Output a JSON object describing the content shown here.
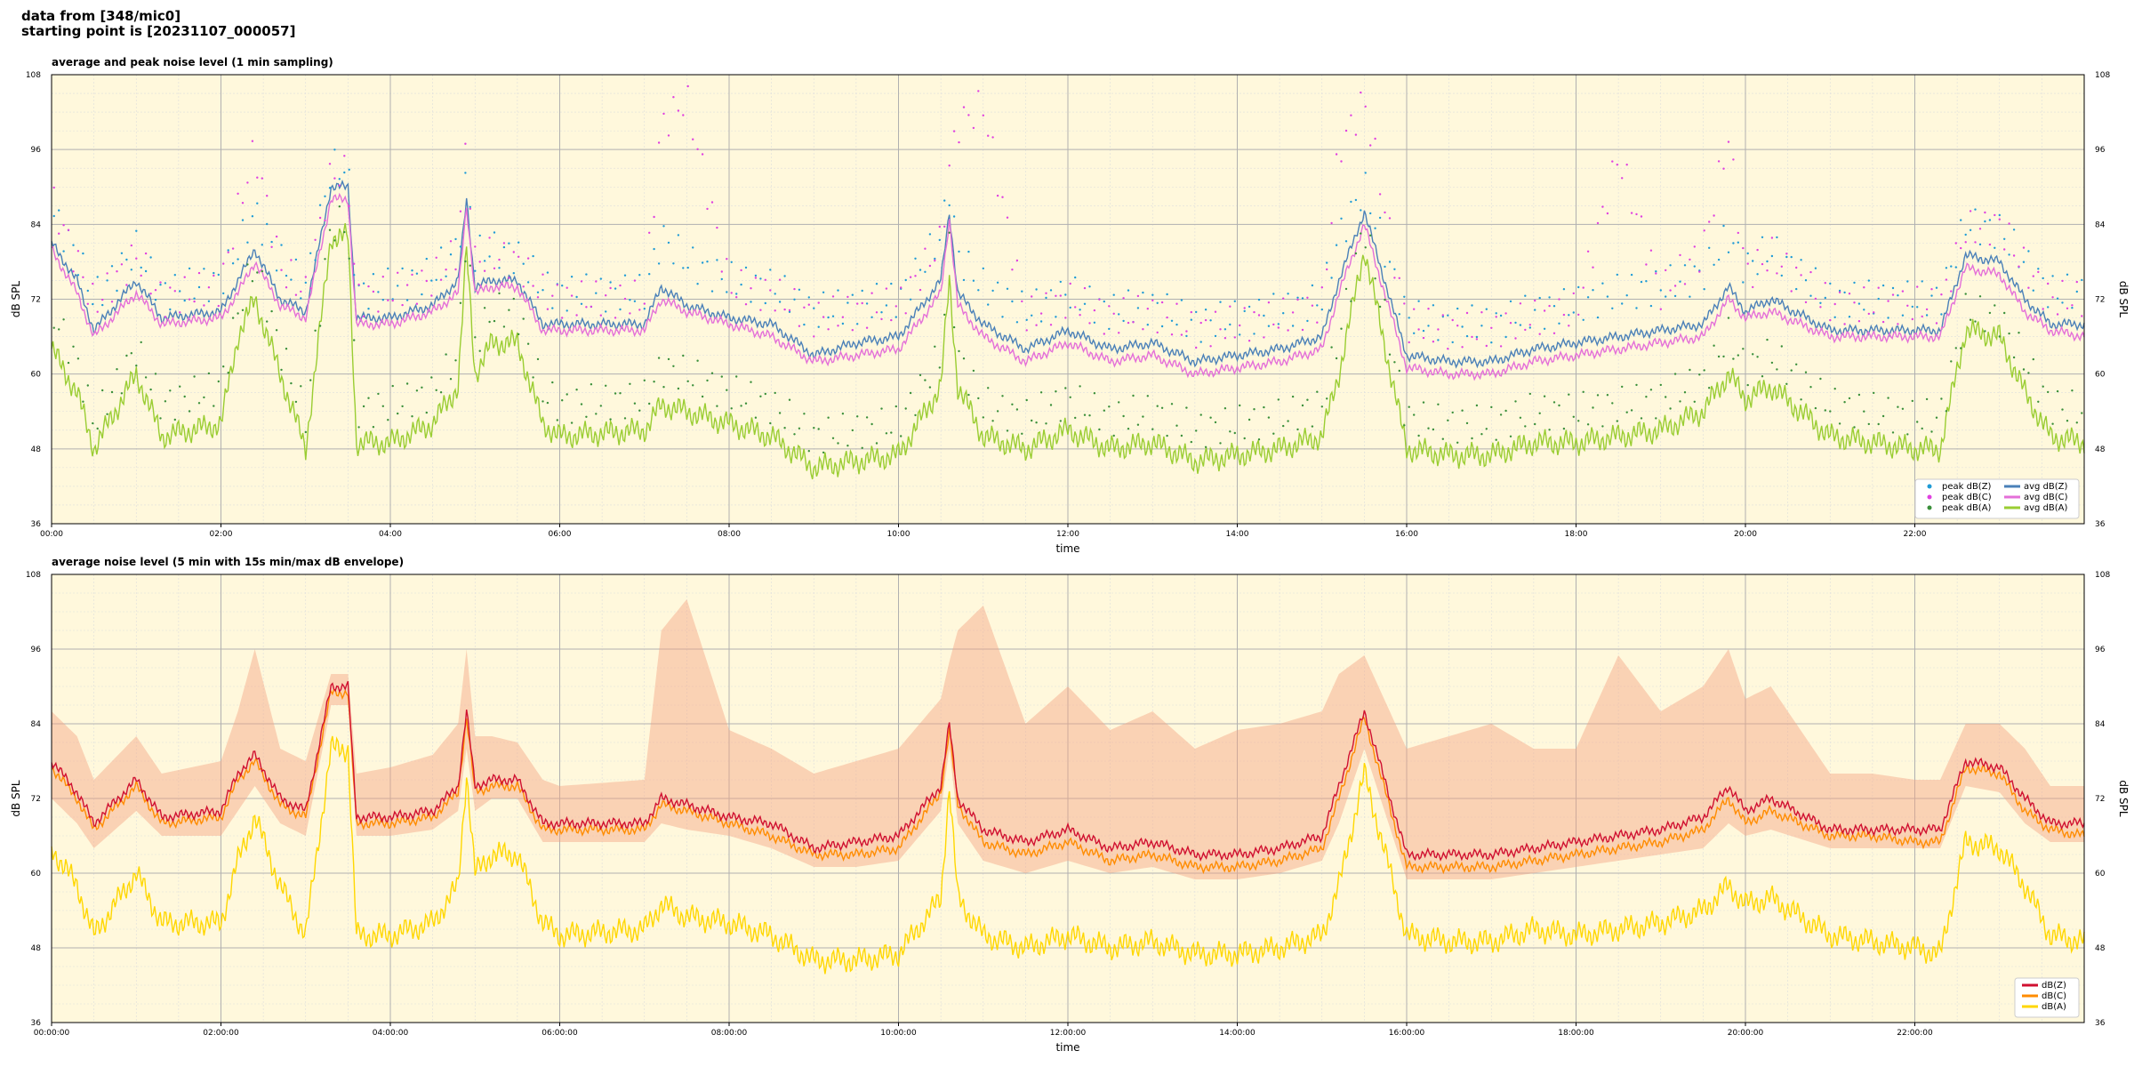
{
  "header": {
    "line1": "data from [348/mic0]",
    "line2": "starting point is [20231107_000057]"
  },
  "colors": {
    "plot_bg": "#fff8dc",
    "peak_z": "#1f9bd6",
    "peak_c": "#e040e0",
    "peak_a": "#3a8f3a",
    "avg_z": "#4a80b8",
    "avg_c": "#e46fd8",
    "avg_a": "#9acd32",
    "dbz": "#d01030",
    "dbc": "#ff8c00",
    "dba": "#ffd700",
    "envelope": "#f4a582"
  },
  "chart_data": [
    {
      "type": "line",
      "title": "average and peak noise level (1 min sampling)",
      "xlabel": "time",
      "ylabel": "dB SPL",
      "xlim": [
        0,
        24
      ],
      "ylim": [
        36,
        108
      ],
      "x_ticks": [
        "00:00",
        "02:00",
        "04:00",
        "06:00",
        "08:00",
        "10:00",
        "12:00",
        "14:00",
        "16:00",
        "18:00",
        "20:00",
        "22:00"
      ],
      "y_ticks": [
        "36",
        "48",
        "60",
        "72",
        "84",
        "96",
        "108"
      ],
      "grid": true,
      "legend": "bottom-right",
      "x_hours": [
        0,
        0.3,
        0.5,
        1,
        1.3,
        2,
        2.2,
        2.4,
        2.7,
        3,
        3.3,
        3.5,
        3.6,
        4,
        4.5,
        4.8,
        4.9,
        5,
        5.2,
        5.5,
        5.8,
        6,
        7,
        7.2,
        7.5,
        8,
        8.5,
        9,
        9.5,
        10,
        10.5,
        10.6,
        10.7,
        11,
        11.5,
        12,
        12.5,
        13,
        13.5,
        14,
        14.5,
        15,
        15.2,
        15.5,
        16,
        16.5,
        17,
        17.5,
        18,
        18.5,
        19,
        19.5,
        19.8,
        20,
        20.3,
        21,
        21.5,
        22,
        22.3,
        22.6,
        23,
        23.3,
        23.6,
        24
      ],
      "series": [
        {
          "name": "avg dB(Z)",
          "kind": "line",
          "values": [
            81,
            75,
            67,
            75,
            69,
            70,
            75,
            80,
            72,
            70,
            90,
            90,
            69,
            69,
            71,
            75,
            88,
            74,
            75,
            75,
            68,
            68,
            68,
            74,
            71,
            69,
            68,
            63,
            65,
            66,
            75,
            86,
            73,
            68,
            64,
            67,
            64,
            65,
            62,
            63,
            64,
            66,
            75,
            86,
            63,
            62,
            62,
            64,
            65,
            66,
            67,
            68,
            74,
            70,
            72,
            67,
            67,
            67,
            67,
            79,
            78,
            72,
            68,
            68
          ]
        },
        {
          "name": "avg dB(C)",
          "kind": "line",
          "values": [
            80,
            73,
            66,
            73,
            68,
            69,
            73,
            78,
            71,
            69,
            88,
            88,
            68,
            68,
            70,
            73,
            87,
            73,
            74,
            74,
            67,
            67,
            67,
            72,
            70,
            68,
            66,
            62,
            63,
            64,
            73,
            85,
            71,
            66,
            62,
            65,
            62,
            63,
            60,
            61,
            62,
            64,
            73,
            84,
            61,
            60,
            60,
            62,
            63,
            64,
            65,
            66,
            72,
            69,
            70,
            66,
            66,
            66,
            66,
            77,
            76,
            70,
            67,
            66
          ]
        },
        {
          "name": "avg dB(A)",
          "kind": "line",
          "values": [
            64,
            57,
            48,
            60,
            50,
            52,
            66,
            72,
            60,
            48,
            82,
            82,
            49,
            49,
            52,
            58,
            80,
            60,
            65,
            65,
            52,
            50,
            51,
            55,
            54,
            52,
            50,
            45,
            46,
            47,
            58,
            75,
            58,
            50,
            48,
            51,
            48,
            49,
            46,
            47,
            48,
            50,
            60,
            80,
            48,
            47,
            47,
            49,
            49,
            50,
            51,
            54,
            60,
            56,
            58,
            50,
            49,
            48,
            48,
            67,
            66,
            57,
            50,
            49
          ]
        },
        {
          "name": "peak dB(Z)",
          "kind": "scatter",
          "values": [
            86,
            79,
            72,
            80,
            73,
            75,
            80,
            86,
            78,
            74,
            93,
            93,
            73,
            74,
            76,
            80,
            92,
            79,
            80,
            79,
            74,
            73,
            73,
            82,
            78,
            75,
            74,
            70,
            71,
            72,
            82,
            90,
            79,
            74,
            70,
            73,
            70,
            71,
            68,
            69,
            70,
            72,
            82,
            90,
            69,
            68,
            68,
            70,
            71,
            73,
            74,
            76,
            82,
            77,
            80,
            72,
            72,
            72,
            72,
            84,
            83,
            78,
            73,
            73
          ]
        },
        {
          "name": "peak dB(C)",
          "kind": "scatter",
          "values": [
            88,
            78,
            71,
            79,
            72,
            74,
            86,
            96,
            77,
            73,
            92,
            92,
            72,
            73,
            75,
            80,
            98,
            78,
            79,
            78,
            73,
            72,
            72,
            100,
            104,
            74,
            73,
            69,
            70,
            71,
            81,
            93,
            100,
            103,
            69,
            72,
            69,
            70,
            67,
            68,
            69,
            71,
            96,
            104,
            68,
            67,
            67,
            69,
            70,
            95,
            73,
            80,
            98,
            76,
            79,
            71,
            71,
            71,
            71,
            83,
            84,
            77,
            72,
            72
          ]
        },
        {
          "name": "peak dB(A)",
          "kind": "scatter",
          "values": [
            70,
            62,
            52,
            64,
            55,
            58,
            70,
            78,
            64,
            53,
            84,
            84,
            54,
            55,
            57,
            63,
            84,
            65,
            70,
            70,
            57,
            55,
            56,
            61,
            60,
            57,
            55,
            50,
            51,
            52,
            63,
            80,
            63,
            55,
            53,
            56,
            53,
            54,
            51,
            52,
            53,
            55,
            66,
            84,
            53,
            52,
            52,
            54,
            54,
            55,
            56,
            59,
            66,
            61,
            63,
            55,
            54,
            53,
            53,
            70,
            69,
            62,
            55,
            54
          ]
        }
      ]
    },
    {
      "type": "line",
      "title": "average noise level (5 min with 15s min/max dB envelope)",
      "xlabel": "time",
      "ylabel": "dB SPL",
      "xlim": [
        0,
        24
      ],
      "ylim": [
        36,
        108
      ],
      "x_ticks": [
        "00:00:00",
        "02:00:00",
        "04:00:00",
        "06:00:00",
        "08:00:00",
        "10:00:00",
        "12:00:00",
        "14:00:00",
        "16:00:00",
        "18:00:00",
        "20:00:00",
        "22:00:00"
      ],
      "y_ticks": [
        "36",
        "48",
        "60",
        "72",
        "84",
        "96",
        "108"
      ],
      "grid": true,
      "legend": "bottom-right",
      "x_hours": [
        0,
        0.3,
        0.5,
        1,
        1.3,
        2,
        2.2,
        2.4,
        2.7,
        3,
        3.3,
        3.5,
        3.6,
        4,
        4.5,
        4.8,
        4.9,
        5,
        5.2,
        5.5,
        5.8,
        6,
        7,
        7.2,
        7.5,
        8,
        8.5,
        9,
        9.5,
        10,
        10.5,
        10.6,
        10.7,
        11,
        11.5,
        12,
        12.5,
        13,
        13.5,
        14,
        14.5,
        15,
        15.2,
        15.5,
        16,
        16.5,
        17,
        17.5,
        18,
        18.5,
        19,
        19.5,
        19.8,
        20,
        20.3,
        21,
        21.5,
        22,
        22.3,
        22.6,
        23,
        23.3,
        23.6,
        24
      ],
      "series": [
        {
          "name": "dB(Z)",
          "kind": "line",
          "values": [
            78,
            73,
            68,
            75,
            69,
            70,
            76,
            79,
            72,
            70,
            90,
            90,
            69,
            69,
            70,
            74,
            86,
            74,
            75,
            75,
            68,
            68,
            68,
            72,
            71,
            69,
            68,
            64,
            65,
            66,
            74,
            84,
            72,
            67,
            65,
            67,
            64,
            65,
            63,
            63,
            64,
            66,
            74,
            86,
            63,
            63,
            63,
            64,
            65,
            66,
            67,
            69,
            74,
            70,
            72,
            67,
            67,
            67,
            67,
            78,
            77,
            72,
            68,
            68
          ]
        },
        {
          "name": "dB(C)",
          "kind": "line",
          "values": [
            77,
            72,
            67,
            74,
            68,
            69,
            75,
            78,
            71,
            69,
            89,
            89,
            68,
            68,
            69,
            73,
            85,
            73,
            74,
            74,
            67,
            67,
            67,
            71,
            70,
            68,
            66,
            63,
            63,
            64,
            73,
            83,
            71,
            65,
            63,
            65,
            62,
            63,
            61,
            61,
            62,
            64,
            72,
            85,
            61,
            61,
            61,
            62,
            63,
            64,
            65,
            67,
            72,
            68,
            70,
            66,
            66,
            65,
            65,
            77,
            76,
            70,
            67,
            66
          ]
        },
        {
          "name": "dB(A)",
          "kind": "line",
          "values": [
            64,
            58,
            50,
            60,
            52,
            52,
            62,
            69,
            58,
            50,
            80,
            80,
            50,
            50,
            52,
            58,
            76,
            60,
            63,
            63,
            52,
            50,
            51,
            55,
            53,
            52,
            50,
            46,
            46,
            47,
            56,
            74,
            56,
            50,
            48,
            50,
            48,
            49,
            47,
            47,
            48,
            50,
            58,
            76,
            50,
            49,
            49,
            51,
            50,
            51,
            52,
            54,
            58,
            55,
            56,
            50,
            49,
            48,
            47,
            65,
            64,
            58,
            50,
            49
          ]
        },
        {
          "name": "envelope max",
          "kind": "band",
          "values": [
            86,
            82,
            75,
            82,
            76,
            78,
            86,
            96,
            80,
            78,
            92,
            92,
            76,
            77,
            79,
            84,
            96,
            82,
            82,
            81,
            75,
            74,
            75,
            99,
            104,
            83,
            80,
            76,
            78,
            80,
            88,
            94,
            99,
            103,
            84,
            90,
            83,
            86,
            80,
            83,
            84,
            86,
            92,
            95,
            80,
            82,
            84,
            80,
            80,
            95,
            86,
            90,
            96,
            88,
            90,
            76,
            76,
            75,
            75,
            84,
            84,
            80,
            74,
            74
          ]
        },
        {
          "name": "envelope min",
          "kind": "band",
          "values": [
            72,
            68,
            64,
            70,
            66,
            66,
            70,
            74,
            68,
            66,
            87,
            87,
            66,
            66,
            67,
            70,
            80,
            70,
            72,
            72,
            65,
            65,
            65,
            68,
            67,
            66,
            64,
            61,
            61,
            62,
            70,
            80,
            68,
            62,
            60,
            62,
            60,
            61,
            59,
            59,
            60,
            62,
            68,
            80,
            59,
            59,
            59,
            60,
            61,
            62,
            63,
            64,
            68,
            66,
            67,
            64,
            64,
            64,
            64,
            74,
            73,
            68,
            65,
            65
          ]
        }
      ]
    }
  ],
  "legend1": {
    "items": [
      {
        "label": "peak dB(Z)",
        "kind": "dot",
        "color": "#1f9bd6"
      },
      {
        "label": "peak dB(C)",
        "kind": "dot",
        "color": "#e040e0"
      },
      {
        "label": "peak dB(A)",
        "kind": "dot",
        "color": "#3a8f3a"
      },
      {
        "label": "avg dB(Z)",
        "kind": "line",
        "color": "#4a80b8"
      },
      {
        "label": "avg dB(C)",
        "kind": "line",
        "color": "#e46fd8"
      },
      {
        "label": "avg dB(A)",
        "kind": "line",
        "color": "#9acd32"
      }
    ]
  },
  "legend2": {
    "items": [
      {
        "label": "dB(Z)",
        "kind": "line",
        "color": "#d01030"
      },
      {
        "label": "dB(C)",
        "kind": "line",
        "color": "#ff8c00"
      },
      {
        "label": "dB(A)",
        "kind": "line",
        "color": "#ffd700"
      }
    ]
  }
}
